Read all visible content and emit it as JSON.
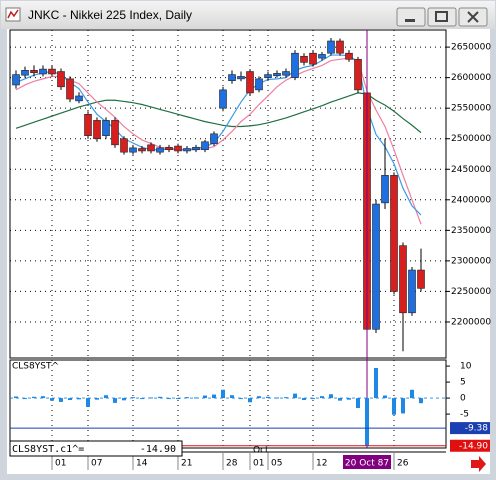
{
  "window": {
    "title": "JNKC - Nikkei 225 Index, Daily"
  },
  "chart_data": [
    {
      "type": "candlestick",
      "categories": [
        null,
        null,
        null,
        null,
        "01",
        null,
        null,
        null,
        "07",
        null,
        null,
        null,
        null,
        "14",
        null,
        null,
        null,
        null,
        "21",
        null,
        null,
        null,
        null,
        "28",
        null,
        null,
        "01",
        null,
        "05",
        null,
        null,
        null,
        null,
        "12",
        null,
        null,
        null,
        null,
        null,
        "20 Oct 87",
        null,
        null,
        "26",
        null,
        null,
        null
      ],
      "open": [
        2588000,
        2604000,
        2612000,
        2606000,
        2614000,
        2610000,
        2598000,
        2562000,
        2540000,
        2530000,
        2505000,
        2530000,
        2500000,
        2478000,
        2484000,
        2490000,
        2478000,
        2486000,
        2488000,
        2480000,
        2482000,
        2482000,
        2492000,
        2550000,
        2595000,
        2598000,
        2610000,
        2580000,
        2600000,
        2603000,
        2604000,
        2600000,
        2635000,
        2640000,
        2632000,
        2640000,
        2660000,
        2640000,
        2630000,
        2575000,
        2188000,
        2395000,
        2440000,
        2325000,
        2215000,
        2285000
      ],
      "high": [
        2612000,
        2618000,
        2620000,
        2620000,
        2620000,
        2615000,
        2602000,
        2576000,
        2545000,
        2535000,
        2535000,
        2535000,
        2504000,
        2490000,
        2488000,
        2494000,
        2490000,
        2490000,
        2492000,
        2488000,
        2490000,
        2498000,
        2512000,
        2585000,
        2612000,
        2610000,
        2614000,
        2602000,
        2610000,
        2612000,
        2615000,
        2645000,
        2640000,
        2644000,
        2642000,
        2665000,
        2664000,
        2645000,
        2634000,
        2580000,
        2400000,
        2500000,
        2445000,
        2330000,
        2290000,
        2320000
      ],
      "low": [
        2582000,
        2600000,
        2602000,
        2602000,
        2602000,
        2580000,
        2560000,
        2558000,
        2500000,
        2495000,
        2500000,
        2485000,
        2474000,
        2474000,
        2476000,
        2476000,
        2474000,
        2478000,
        2476000,
        2476000,
        2478000,
        2478000,
        2488000,
        2545000,
        2590000,
        2594000,
        2570000,
        2576000,
        2596000,
        2600000,
        2600000,
        2596000,
        2620000,
        2618000,
        2628000,
        2636000,
        2636000,
        2626000,
        2575000,
        2182000,
        2182000,
        2385000,
        2245000,
        2152000,
        2210000,
        2250000
      ],
      "close": [
        2605000,
        2612000,
        2608000,
        2614000,
        2606000,
        2585000,
        2565000,
        2570000,
        2505000,
        2500000,
        2530000,
        2490000,
        2478000,
        2485000,
        2480000,
        2480000,
        2485000,
        2482000,
        2480000,
        2484000,
        2486000,
        2495000,
        2508000,
        2580000,
        2605000,
        2602000,
        2575000,
        2598000,
        2605000,
        2607000,
        2610000,
        2640000,
        2625000,
        2622000,
        2638000,
        2660000,
        2640000,
        2630000,
        2580000,
        2188000,
        2393000,
        2440000,
        2250000,
        2215000,
        2285000,
        2255000
      ],
      "up_color": "#1f6fe0",
      "down_color": "#d62020",
      "series": [
        {
          "color": "#207040",
          "values": [
            2517000,
            2522000,
            2527000,
            2532000,
            2537000,
            2542000,
            2547000,
            2552000,
            2556000,
            2560000,
            2563000,
            2563000,
            2561000,
            2559000,
            2556000,
            2552000,
            2548000,
            2544000,
            2540000,
            2536000,
            2532000,
            2528000,
            2525000,
            2522000,
            2520000,
            2520000,
            2521000,
            2523000,
            2526000,
            2530000,
            2534000,
            2539000,
            2544000,
            2549000,
            2554000,
            2560000,
            2565000,
            2570000,
            2575000,
            2573000,
            2563000,
            2555000,
            2545000,
            2533000,
            2522000,
            2510000
          ]
        },
        {
          "color": "#f07fa0",
          "values": [
            2580000,
            2588000,
            2594000,
            2598000,
            2602000,
            2602000,
            2596000,
            2590000,
            2575000,
            2560000,
            2548000,
            2535000,
            2520000,
            2508000,
            2498000,
            2492000,
            2486000,
            2484000,
            2483000,
            2482000,
            2482000,
            2484000,
            2487000,
            2498000,
            2512000,
            2528000,
            2540000,
            2556000,
            2570000,
            2585000,
            2596000,
            2603000,
            2610000,
            2615000,
            2620000,
            2628000,
            2630000,
            2632000,
            2628000,
            2578000,
            2547000,
            2520000,
            2482000,
            2440000,
            2400000,
            2360000
          ]
        },
        {
          "color": "#3d9be9",
          "values": [
            2592000,
            2598000,
            2604000,
            2608000,
            2610000,
            2605000,
            2592000,
            2582000,
            2560000,
            2540000,
            2528000,
            2516000,
            2500000,
            2493000,
            2486000,
            2482000,
            2482000,
            2483000,
            2482000,
            2482000,
            2484000,
            2487000,
            2493000,
            2512000,
            2536000,
            2560000,
            2580000,
            2590000,
            2597000,
            2598000,
            2600000,
            2612000,
            2617000,
            2620000,
            2628000,
            2637000,
            2637000,
            2636000,
            2626000,
            2550000,
            2507000,
            2487000,
            2459000,
            2419000,
            2390000,
            2375000
          ]
        }
      ],
      "ylim": [
        2141000,
        2678000
      ],
      "yticks": [
        2200000,
        2250000,
        2300000,
        2350000,
        2400000,
        2450000,
        2500000,
        2550000,
        2600000,
        2650000
      ],
      "grid": true,
      "cursor": 39,
      "cursor_color": "#800080",
      "month_label": "Oct"
    },
    {
      "type": "bar",
      "title": "CLS8YST^",
      "color": "#1e88e5",
      "values": [
        0.5,
        -0.3,
        0.4,
        0.6,
        -0.8,
        -1.2,
        -0.6,
        -0.4,
        -2.8,
        -0.5,
        0.9,
        -1.5,
        -0.7,
        0.3,
        -0.3,
        0.2,
        0.4,
        -0.2,
        -0.3,
        0.3,
        0.2,
        0.8,
        1.1,
        2.6,
        0.9,
        -0.3,
        -1.3,
        0.6,
        0.4,
        0.2,
        0.3,
        1.4,
        -0.6,
        -0.2,
        0.6,
        1.2,
        -0.8,
        -0.5,
        -3.1,
        -14.9,
        9.4,
        0.8,
        -5.2,
        -4.8,
        2.6,
        -1.6
      ],
      "ylim": [
        -15.6,
        11.9
      ],
      "yticks": [
        -5,
        0,
        5,
        10
      ],
      "markers": [
        {
          "value": -9.38,
          "label": "-9.38",
          "color": "#1a3fb0"
        },
        {
          "value": -14.9,
          "label": "-14.90",
          "color": "#e01010"
        }
      ]
    }
  ],
  "readout": {
    "name": "CLS8YST.c1^=",
    "value": -14.9,
    "value_label": "-14.90"
  }
}
